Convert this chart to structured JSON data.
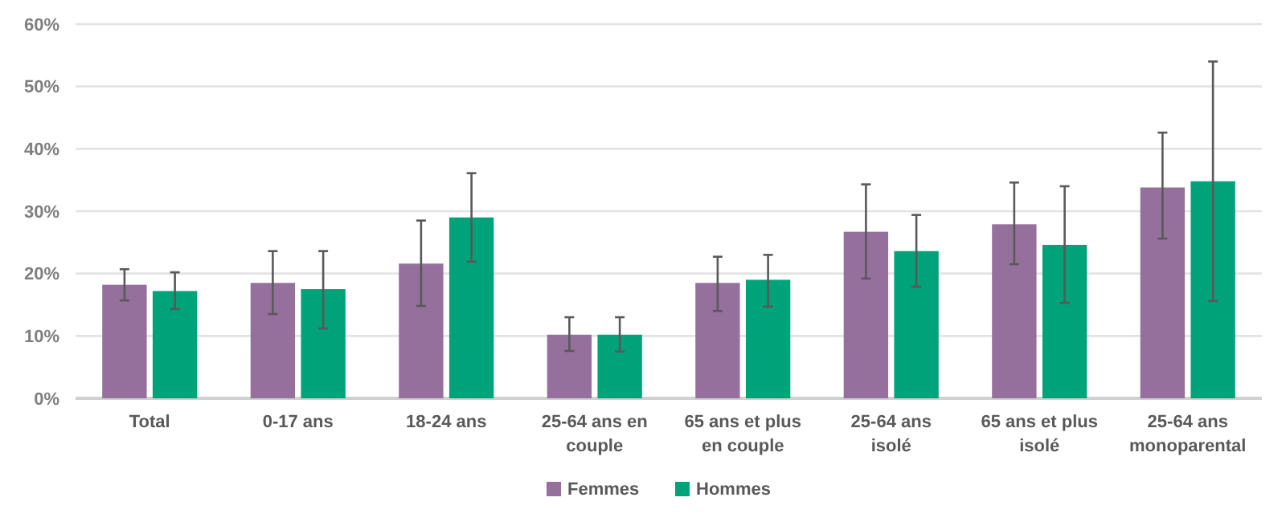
{
  "chart_data": {
    "type": "bar",
    "categories": [
      "Total",
      "0-17 ans",
      "18-24 ans",
      "25-64 ans en couple",
      "65 ans et plus en couple",
      "25-64 ans isolé",
      "65 ans et plus isolé",
      "25-64 ans monoparental"
    ],
    "series": [
      {
        "name": "Femmes",
        "color": "#95709c",
        "values": [
          18.2,
          18.5,
          21.6,
          10.2,
          18.5,
          26.7,
          27.9,
          33.8
        ],
        "errors": [
          [
            15.7,
            20.7
          ],
          [
            13.5,
            23.6
          ],
          [
            14.8,
            28.5
          ],
          [
            7.6,
            13.0
          ],
          [
            14.0,
            22.7
          ],
          [
            19.2,
            34.3
          ],
          [
            21.5,
            34.6
          ],
          [
            25.6,
            42.6
          ]
        ]
      },
      {
        "name": "Hommes",
        "color": "#00a27a",
        "values": [
          17.2,
          17.5,
          29.0,
          10.2,
          19.0,
          23.6,
          24.6,
          34.8
        ],
        "errors": [
          [
            14.3,
            20.2
          ],
          [
            11.2,
            23.6
          ],
          [
            21.9,
            36.1
          ],
          [
            7.5,
            13.0
          ],
          [
            14.7,
            23.0
          ],
          [
            17.9,
            29.4
          ],
          [
            15.3,
            34.0
          ],
          [
            15.6,
            54.0
          ]
        ]
      }
    ],
    "ylim": [
      0,
      60
    ],
    "yticks": [
      {
        "value": 0,
        "label": "0%"
      },
      {
        "value": 10,
        "label": "10%"
      },
      {
        "value": 20,
        "label": "20%"
      },
      {
        "value": 30,
        "label": "30%"
      },
      {
        "value": 40,
        "label": "40%"
      },
      {
        "value": 50,
        "label": "50%"
      },
      {
        "value": 60,
        "label": "60%"
      }
    ],
    "grid": "y",
    "legend": "bottom"
  }
}
